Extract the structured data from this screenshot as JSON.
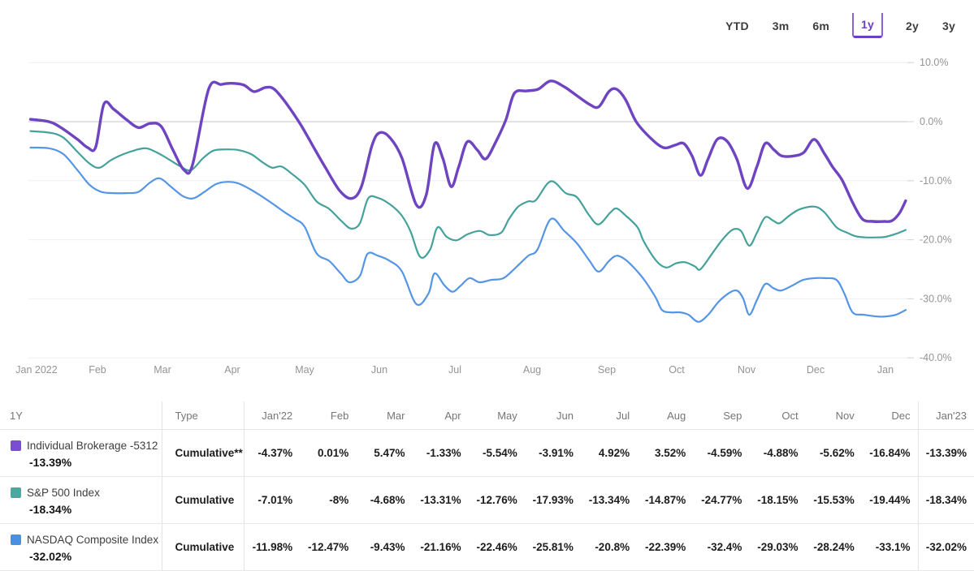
{
  "range_selector": {
    "options": [
      {
        "label": "YTD",
        "selected": false
      },
      {
        "label": "3m",
        "selected": false
      },
      {
        "label": "6m",
        "selected": false
      },
      {
        "label": "1y",
        "selected": true
      },
      {
        "label": "2y",
        "selected": false
      },
      {
        "label": "3y",
        "selected": false
      }
    ],
    "selected_label": "1y",
    "accent_color": "#6a3fc9"
  },
  "chart_data": {
    "type": "line",
    "x_tick_labels": [
      "Jan 2022",
      "Feb",
      "Mar",
      "Apr",
      "May",
      "Jun",
      "Jul",
      "Aug",
      "Sep",
      "Oct",
      "Nov",
      "Dec",
      "Jan"
    ],
    "y_tick_labels": [
      "10.0%",
      "0.0%",
      "-10.0%",
      "-20.0%",
      "-30.0%",
      "-40.0%"
    ],
    "y_tick_values": [
      10,
      0,
      -10,
      -20,
      -30,
      -40
    ],
    "ylim": [
      -40,
      10
    ],
    "grid": "horizontal",
    "zero_line_color": "#c6c6c6",
    "grid_color": "#ededed",
    "axis_text_color": "#949494",
    "categories": [
      "Jan'22",
      "Feb",
      "Mar",
      "Apr",
      "May",
      "Jun",
      "Jul",
      "Aug",
      "Sep",
      "Oct",
      "Nov",
      "Dec",
      "Jan'23"
    ],
    "series": [
      {
        "name": "Individual Brokerage -5312",
        "type": "Cumulative**",
        "total_display": "-13.39%",
        "line_color": "#6e44c1",
        "swatch_color": "#7a4ed2",
        "line_width": 3.4,
        "monthly_cumulative_pct": [
          -4.37,
          0.01,
          5.47,
          -1.33,
          -5.54,
          -3.91,
          4.92,
          3.52,
          -4.59,
          -4.88,
          -5.62,
          -16.84,
          -13.39
        ],
        "waypoints": [
          [
            -0.1,
            0.4
          ],
          [
            0.2,
            0
          ],
          [
            0.4,
            -1
          ],
          [
            0.67,
            -3
          ],
          [
            0.84,
            -4.4
          ],
          [
            0.97,
            -4.3
          ],
          [
            1.1,
            3
          ],
          [
            1.25,
            2.1
          ],
          [
            1.44,
            0.4
          ],
          [
            1.63,
            -1
          ],
          [
            1.81,
            -0.3
          ],
          [
            1.98,
            -0.8
          ],
          [
            2.15,
            -4.8
          ],
          [
            2.31,
            -8.2
          ],
          [
            2.43,
            -7.3
          ],
          [
            2.66,
            5.5
          ],
          [
            2.84,
            6.3
          ],
          [
            2.99,
            6.5
          ],
          [
            3.16,
            6.2
          ],
          [
            3.3,
            5.1
          ],
          [
            3.46,
            5.8
          ],
          [
            3.58,
            5.5
          ],
          [
            3.74,
            3.2
          ],
          [
            3.94,
            -0.4
          ],
          [
            4.11,
            -4.1
          ],
          [
            4.27,
            -7.6
          ],
          [
            4.47,
            -11.7
          ],
          [
            4.63,
            -13
          ],
          [
            4.76,
            -11
          ],
          [
            4.9,
            -4.1
          ],
          [
            5.0,
            -1.9
          ],
          [
            5.14,
            -2.7
          ],
          [
            5.3,
            -6.2
          ],
          [
            5.49,
            -14.1
          ],
          [
            5.62,
            -12.4
          ],
          [
            5.73,
            -3.8
          ],
          [
            5.84,
            -6.2
          ],
          [
            5.95,
            -11
          ],
          [
            6.05,
            -7.6
          ],
          [
            6.16,
            -3.4
          ],
          [
            6.29,
            -4.8
          ],
          [
            6.4,
            -6.3
          ],
          [
            6.53,
            -3.4
          ],
          [
            6.66,
            0.3
          ],
          [
            6.77,
            4.8
          ],
          [
            6.93,
            5.2
          ],
          [
            7.08,
            5.5
          ],
          [
            7.25,
            6.9
          ],
          [
            7.43,
            5.9
          ],
          [
            7.6,
            4.4
          ],
          [
            7.76,
            3
          ],
          [
            7.89,
            2.5
          ],
          [
            8.03,
            5.1
          ],
          [
            8.14,
            5.5
          ],
          [
            8.27,
            3.7
          ],
          [
            8.42,
            0
          ],
          [
            8.62,
            -2.7
          ],
          [
            8.81,
            -4.4
          ],
          [
            8.97,
            -4
          ],
          [
            9.1,
            -3.7
          ],
          [
            9.22,
            -5.8
          ],
          [
            9.34,
            -9.1
          ],
          [
            9.45,
            -6.3
          ],
          [
            9.58,
            -3
          ],
          [
            9.72,
            -3.3
          ],
          [
            9.86,
            -6.3
          ],
          [
            10.01,
            -11.3
          ],
          [
            10.15,
            -7.6
          ],
          [
            10.27,
            -3.7
          ],
          [
            10.4,
            -4.8
          ],
          [
            10.51,
            -5.8
          ],
          [
            10.69,
            -5.8
          ],
          [
            10.83,
            -5.2
          ],
          [
            10.98,
            -3
          ],
          [
            11.13,
            -5.5
          ],
          [
            11.24,
            -7.6
          ],
          [
            11.38,
            -9.9
          ],
          [
            11.53,
            -13.7
          ],
          [
            11.67,
            -16.5
          ],
          [
            11.82,
            -16.9
          ],
          [
            11.98,
            -16.9
          ],
          [
            12.09,
            -16.8
          ],
          [
            12.2,
            -15.5
          ],
          [
            12.29,
            -13.39
          ]
        ]
      },
      {
        "name": "S&P 500 Index",
        "type": "Cumulative",
        "total_display": "-18.34%",
        "line_color": "#45a29b",
        "swatch_color": "#4aa8a1",
        "line_width": 2.2,
        "monthly_cumulative_pct": [
          -7.01,
          -8,
          -4.68,
          -13.31,
          -12.76,
          -17.93,
          -13.34,
          -14.87,
          -24.77,
          -18.15,
          -15.53,
          -19.44,
          -18.34
        ],
        "waypoints": [
          [
            -0.1,
            -1.6
          ],
          [
            0.23,
            -1.9
          ],
          [
            0.44,
            -2.7
          ],
          [
            0.67,
            -5.1
          ],
          [
            0.87,
            -7.1
          ],
          [
            1.03,
            -7.8
          ],
          [
            1.21,
            -6.5
          ],
          [
            1.4,
            -5.5
          ],
          [
            1.59,
            -4.8
          ],
          [
            1.75,
            -4.5
          ],
          [
            1.91,
            -5.2
          ],
          [
            2.08,
            -6.3
          ],
          [
            2.26,
            -7.6
          ],
          [
            2.41,
            -8.2
          ],
          [
            2.58,
            -6.2
          ],
          [
            2.73,
            -4.9
          ],
          [
            2.91,
            -4.7
          ],
          [
            3.08,
            -4.8
          ],
          [
            3.26,
            -5.5
          ],
          [
            3.42,
            -6.9
          ],
          [
            3.55,
            -7.8
          ],
          [
            3.68,
            -7.6
          ],
          [
            3.83,
            -8.9
          ],
          [
            4.0,
            -10.7
          ],
          [
            4.16,
            -13.5
          ],
          [
            4.33,
            -14.8
          ],
          [
            4.49,
            -16.8
          ],
          [
            4.62,
            -18.1
          ],
          [
            4.74,
            -17.2
          ],
          [
            4.85,
            -13
          ],
          [
            4.98,
            -12.9
          ],
          [
            5.14,
            -14
          ],
          [
            5.29,
            -15.8
          ],
          [
            5.41,
            -18.5
          ],
          [
            5.54,
            -22.9
          ],
          [
            5.67,
            -21.7
          ],
          [
            5.77,
            -17.9
          ],
          [
            5.89,
            -19.5
          ],
          [
            6.02,
            -20.1
          ],
          [
            6.16,
            -19.1
          ],
          [
            6.32,
            -18.5
          ],
          [
            6.45,
            -19.2
          ],
          [
            6.6,
            -18.8
          ],
          [
            6.7,
            -16.5
          ],
          [
            6.82,
            -14.4
          ],
          [
            6.95,
            -13.5
          ],
          [
            7.05,
            -13.3
          ],
          [
            7.25,
            -10.1
          ],
          [
            7.45,
            -12.1
          ],
          [
            7.6,
            -12.8
          ],
          [
            7.76,
            -15.8
          ],
          [
            7.89,
            -17.4
          ],
          [
            8.05,
            -15.4
          ],
          [
            8.14,
            -14.7
          ],
          [
            8.27,
            -15.9
          ],
          [
            8.44,
            -17.9
          ],
          [
            8.53,
            -20.3
          ],
          [
            8.71,
            -23.6
          ],
          [
            8.85,
            -24.7
          ],
          [
            8.99,
            -24
          ],
          [
            9.12,
            -23.8
          ],
          [
            9.26,
            -24.5
          ],
          [
            9.34,
            -25
          ],
          [
            9.51,
            -22.3
          ],
          [
            9.66,
            -19.9
          ],
          [
            9.8,
            -18.3
          ],
          [
            9.92,
            -18.5
          ],
          [
            10.04,
            -21
          ],
          [
            10.15,
            -18.8
          ],
          [
            10.27,
            -16.2
          ],
          [
            10.39,
            -16.8
          ],
          [
            10.48,
            -17.2
          ],
          [
            10.62,
            -15.9
          ],
          [
            10.78,
            -14.8
          ],
          [
            10.99,
            -14.4
          ],
          [
            11.13,
            -15.4
          ],
          [
            11.3,
            -17.9
          ],
          [
            11.45,
            -18.8
          ],
          [
            11.57,
            -19.4
          ],
          [
            11.71,
            -19.6
          ],
          [
            11.88,
            -19.6
          ],
          [
            12.0,
            -19.5
          ],
          [
            12.15,
            -19
          ],
          [
            12.29,
            -18.34
          ]
        ]
      },
      {
        "name": "NASDAQ Composite Index",
        "type": "Cumulative",
        "total_display": "-32.02%",
        "line_color": "#5595e6",
        "swatch_color": "#4a90e2",
        "line_width": 2.2,
        "monthly_cumulative_pct": [
          -11.98,
          -12.47,
          -9.43,
          -21.16,
          -22.46,
          -25.81,
          -20.8,
          -22.39,
          -32.4,
          -29.03,
          -28.24,
          -33.1,
          -32.02
        ],
        "waypoints": [
          [
            -0.1,
            -4.4
          ],
          [
            0.2,
            -4.5
          ],
          [
            0.44,
            -5.5
          ],
          [
            0.67,
            -8.2
          ],
          [
            0.87,
            -10.7
          ],
          [
            1.06,
            -11.9
          ],
          [
            1.25,
            -12.1
          ],
          [
            1.44,
            -12.1
          ],
          [
            1.63,
            -11.9
          ],
          [
            1.81,
            -10.3
          ],
          [
            1.96,
            -9.6
          ],
          [
            2.12,
            -11
          ],
          [
            2.29,
            -12.6
          ],
          [
            2.44,
            -13
          ],
          [
            2.6,
            -11.9
          ],
          [
            2.76,
            -10.6
          ],
          [
            2.91,
            -10.2
          ],
          [
            3.07,
            -10.4
          ],
          [
            3.24,
            -11.4
          ],
          [
            3.4,
            -12.6
          ],
          [
            3.57,
            -14
          ],
          [
            3.73,
            -15.4
          ],
          [
            3.87,
            -16.5
          ],
          [
            4.0,
            -17.8
          ],
          [
            4.16,
            -22.3
          ],
          [
            4.33,
            -23.6
          ],
          [
            4.49,
            -25.8
          ],
          [
            4.6,
            -27.2
          ],
          [
            4.74,
            -26.1
          ],
          [
            4.84,
            -22.4
          ],
          [
            4.98,
            -22.7
          ],
          [
            5.14,
            -23.6
          ],
          [
            5.3,
            -25.4
          ],
          [
            5.49,
            -30.9
          ],
          [
            5.65,
            -29.1
          ],
          [
            5.73,
            -25.7
          ],
          [
            5.86,
            -27.7
          ],
          [
            5.97,
            -28.8
          ],
          [
            6.08,
            -27.7
          ],
          [
            6.19,
            -26.5
          ],
          [
            6.32,
            -27.2
          ],
          [
            6.47,
            -26.8
          ],
          [
            6.63,
            -26.5
          ],
          [
            6.79,
            -24.7
          ],
          [
            6.95,
            -22.7
          ],
          [
            7.07,
            -21.7
          ],
          [
            7.25,
            -16.5
          ],
          [
            7.43,
            -18.5
          ],
          [
            7.6,
            -20.6
          ],
          [
            7.76,
            -23.4
          ],
          [
            7.89,
            -25.4
          ],
          [
            8.03,
            -23.6
          ],
          [
            8.14,
            -22.7
          ],
          [
            8.27,
            -23.4
          ],
          [
            8.44,
            -25.4
          ],
          [
            8.56,
            -27.2
          ],
          [
            8.7,
            -29.8
          ],
          [
            8.79,
            -31.9
          ],
          [
            8.91,
            -32.3
          ],
          [
            9.05,
            -32.3
          ],
          [
            9.17,
            -32.7
          ],
          [
            9.31,
            -33.9
          ],
          [
            9.45,
            -32.7
          ],
          [
            9.6,
            -30.5
          ],
          [
            9.74,
            -29.1
          ],
          [
            9.86,
            -28.6
          ],
          [
            9.95,
            -29.9
          ],
          [
            10.04,
            -32.7
          ],
          [
            10.15,
            -30.2
          ],
          [
            10.27,
            -27.5
          ],
          [
            10.39,
            -28.2
          ],
          [
            10.5,
            -28.6
          ],
          [
            10.67,
            -27.7
          ],
          [
            10.82,
            -26.8
          ],
          [
            10.99,
            -26.5
          ],
          [
            11.13,
            -26.5
          ],
          [
            11.3,
            -26.8
          ],
          [
            11.41,
            -29.1
          ],
          [
            11.53,
            -32.3
          ],
          [
            11.69,
            -32.7
          ],
          [
            11.88,
            -33
          ],
          [
            12.0,
            -33
          ],
          [
            12.15,
            -32.7
          ],
          [
            12.29,
            -31.9
          ]
        ]
      }
    ]
  },
  "table": {
    "corner_header": "1Y",
    "type_header": "Type",
    "month_headers": [
      "Jan'22",
      "Feb",
      "Mar",
      "Apr",
      "May",
      "Jun",
      "Jul",
      "Aug",
      "Sep",
      "Oct",
      "Nov",
      "Dec",
      "Jan'23"
    ],
    "rows": [
      {
        "name": "Individual Brokerage -5312",
        "total": "-13.39%",
        "type": "Cumulative**",
        "values": [
          "-4.37%",
          "0.01%",
          "5.47%",
          "-1.33%",
          "-5.54%",
          "-3.91%",
          "4.92%",
          "3.52%",
          "-4.59%",
          "-4.88%",
          "-5.62%",
          "-16.84%",
          "-13.39%"
        ]
      },
      {
        "name": "S&P 500 Index",
        "total": "-18.34%",
        "type": "Cumulative",
        "values": [
          "-7.01%",
          "-8%",
          "-4.68%",
          "-13.31%",
          "-12.76%",
          "-17.93%",
          "-13.34%",
          "-14.87%",
          "-24.77%",
          "-18.15%",
          "-15.53%",
          "-19.44%",
          "-18.34%"
        ]
      },
      {
        "name": "NASDAQ Composite Index",
        "total": "-32.02%",
        "type": "Cumulative",
        "values": [
          "-11.98%",
          "-12.47%",
          "-9.43%",
          "-21.16%",
          "-22.46%",
          "-25.81%",
          "-20.8%",
          "-22.39%",
          "-32.4%",
          "-29.03%",
          "-28.24%",
          "-33.1%",
          "-32.02%"
        ]
      }
    ]
  }
}
